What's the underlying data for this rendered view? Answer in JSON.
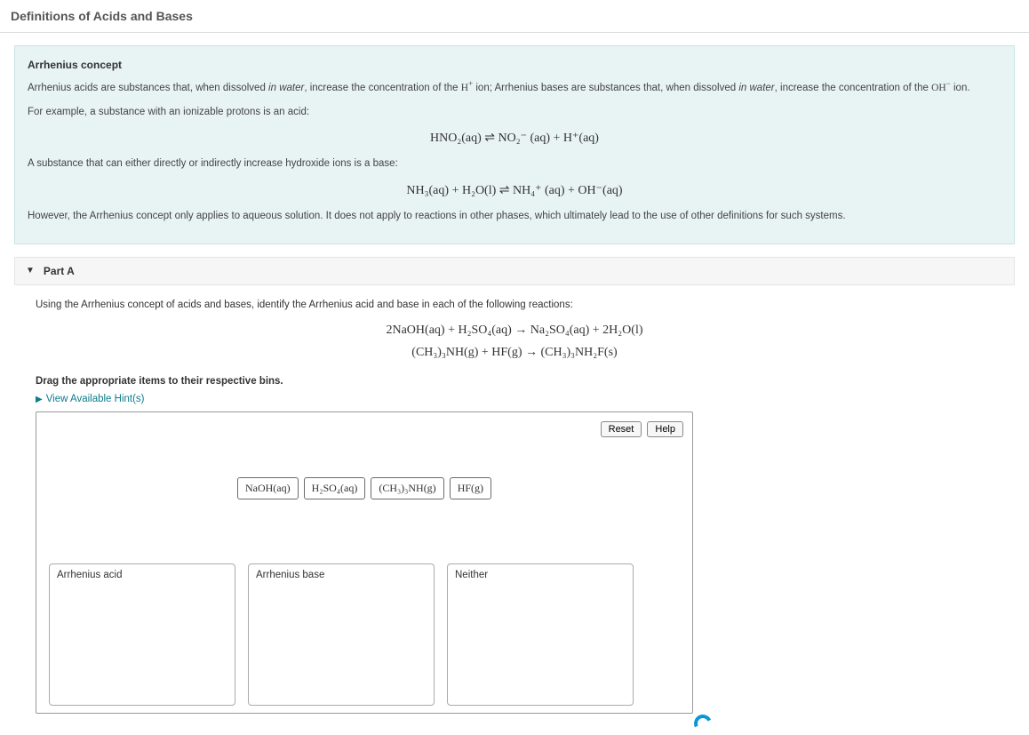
{
  "page": {
    "title": "Definitions of Acids and Bases"
  },
  "concept": {
    "subtitle": "Arrhenius concept",
    "p1_a": "Arrhenius acids are substances that, when dissolved ",
    "p1_b": "in water",
    "p1_c": ", increase the concentration of the ",
    "p1_d": " ion; Arrhenius bases are substances that, when dissolved ",
    "p1_e": "in water",
    "p1_f": ", increase the concentration of the ",
    "p1_g": " ion.",
    "p2": "For example, a substance with an ionizable protons is an acid:",
    "eq1": "HNO₂(aq)  ⇌  NO₂⁻ (aq)  +  H⁺(aq)",
    "p3": "A substance that can either directly or indirectly increase hydroxide ions is a base:",
    "eq2": "NH₃(aq)  +  H₂O(l)  ⇌  NH₄⁺ (aq)  +  OH⁻(aq)",
    "p4": "However, the Arrhenius concept only applies to aqueous solution. It does not apply to reactions in other phases, which ultimately lead to the use of other definitions for such systems."
  },
  "part": {
    "label": "Part A"
  },
  "question": {
    "prompt": "Using the Arrhenius concept of acids and bases, identify the Arrhenius acid and base in each of the following reactions:",
    "rxn1": "2NaOH(aq) + H₂SO₄(aq) → Na₂SO₄(aq) + 2H₂O(l)",
    "rxn2": "(CH₃)₃NH(g) + HF(g) → (CH₃)₃NH₂F(s)",
    "instr": "Drag the appropriate items to their respective bins.",
    "hints": "View Available Hint(s)"
  },
  "controls": {
    "reset": "Reset",
    "help": "Help"
  },
  "chips": [
    {
      "label": "NaOH(aq)"
    },
    {
      "label": "H₂SO₄(aq)"
    },
    {
      "label": "(CH₃)₃NH(g)"
    },
    {
      "label": "HF(g)"
    }
  ],
  "bins": [
    {
      "title": "Arrhenius acid"
    },
    {
      "title": "Arrhenius base"
    },
    {
      "title": "Neither"
    }
  ],
  "colors": {
    "panel_bg": "#e8f3f4",
    "panel_border": "#cce3e6",
    "link": "#0d7c8a",
    "box_border": "#999999",
    "chip_border": "#6b6b6b",
    "bin_border": "#aaaaaa",
    "accent_circle": "#0a97d9"
  }
}
